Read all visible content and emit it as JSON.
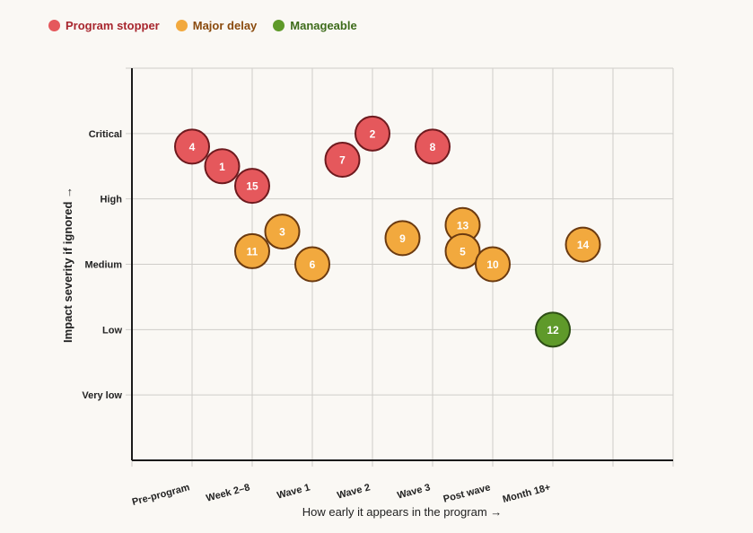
{
  "legend": [
    {
      "label": "Program stopper",
      "fill": "#e5585c",
      "stroke": "#6e1a1e",
      "text": "#a8262e"
    },
    {
      "label": "Major delay",
      "fill": "#f2a93e",
      "stroke": "#6b3a10",
      "text": "#8a4a0d"
    },
    {
      "label": "Manageable",
      "fill": "#5f9a2a",
      "stroke": "#2d4d15",
      "text": "#3d6b1a"
    }
  ],
  "chart_data": {
    "type": "scatter",
    "title": "",
    "xlabel": "How early it appears in the program →",
    "ylabel": "Impact severity if ignored →",
    "xlim": [
      0,
      9
    ],
    "ylim": [
      0,
      6
    ],
    "grid": true,
    "legend_position": "top-left",
    "x_ticks": [
      {
        "value": 1,
        "label": "Pre-program"
      },
      {
        "value": 2,
        "label": "Week 2–8"
      },
      {
        "value": 3,
        "label": "Wave 1"
      },
      {
        "value": 4,
        "label": "Wave 2"
      },
      {
        "value": 5,
        "label": "Wave 3"
      },
      {
        "value": 6,
        "label": "Post wave"
      },
      {
        "value": 7,
        "label": "Month 18+"
      }
    ],
    "y_ticks": [
      {
        "value": 1,
        "label": "Very low"
      },
      {
        "value": 2,
        "label": "Low"
      },
      {
        "value": 3,
        "label": "Medium"
      },
      {
        "value": 4,
        "label": "High"
      },
      {
        "value": 5,
        "label": "Critical"
      }
    ],
    "points": [
      {
        "id": "4",
        "x": 1,
        "y": 4.8,
        "category": 0
      },
      {
        "id": "1",
        "x": 1.5,
        "y": 4.5,
        "category": 0
      },
      {
        "id": "15",
        "x": 2,
        "y": 4.2,
        "category": 0
      },
      {
        "id": "7",
        "x": 3.5,
        "y": 4.6,
        "category": 0
      },
      {
        "id": "2",
        "x": 4,
        "y": 5.0,
        "category": 0
      },
      {
        "id": "8",
        "x": 5,
        "y": 4.8,
        "category": 0
      },
      {
        "id": "3",
        "x": 2.5,
        "y": 3.5,
        "category": 1
      },
      {
        "id": "11",
        "x": 2,
        "y": 3.2,
        "category": 1
      },
      {
        "id": "6",
        "x": 3,
        "y": 3.0,
        "category": 1
      },
      {
        "id": "9",
        "x": 4.5,
        "y": 3.4,
        "category": 1
      },
      {
        "id": "13",
        "x": 5.5,
        "y": 3.6,
        "category": 1
      },
      {
        "id": "5",
        "x": 5.5,
        "y": 3.2,
        "category": 1
      },
      {
        "id": "10",
        "x": 6,
        "y": 3.0,
        "category": 1
      },
      {
        "id": "14",
        "x": 7.5,
        "y": 3.3,
        "category": 1
      },
      {
        "id": "12",
        "x": 7,
        "y": 2.0,
        "category": 2
      }
    ]
  }
}
